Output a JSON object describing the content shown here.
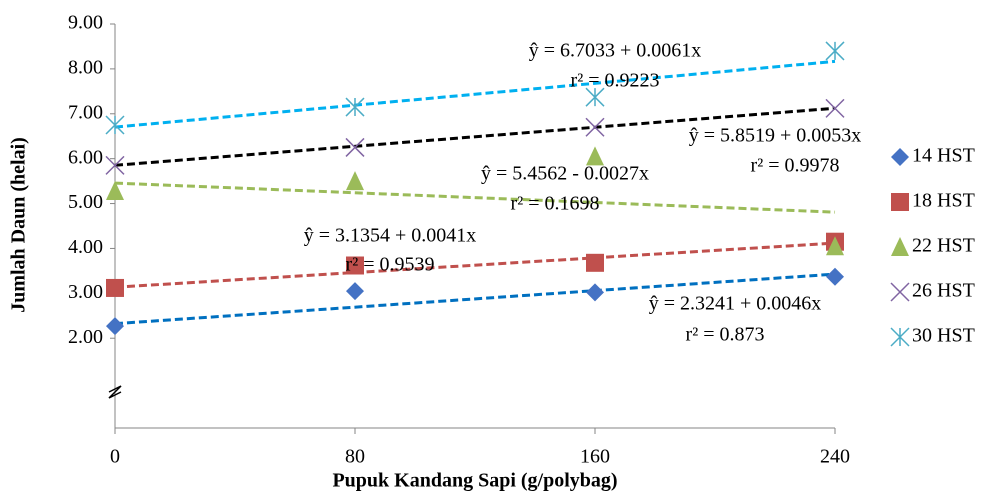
{
  "chart_data": {
    "type": "scatter",
    "x_label": "Pupuk Kandang Sapi (g/polybag)",
    "y_label": "Jumlah Daun (helai)",
    "xlim": [
      0,
      240
    ],
    "xticks": [
      0,
      80,
      160,
      240
    ],
    "ylim": [
      0,
      9
    ],
    "yticks": [
      {
        "value": 2,
        "label": "2.00"
      },
      {
        "value": 3,
        "label": "3.00"
      },
      {
        "value": 4,
        "label": "4.00"
      },
      {
        "value": 5,
        "label": "5.00"
      },
      {
        "value": 6,
        "label": "6.00"
      },
      {
        "value": 7,
        "label": "7.00"
      },
      {
        "value": 8,
        "label": "8.00"
      },
      {
        "value": 9,
        "label": "9.00"
      }
    ],
    "legend": "right",
    "x": [
      0,
      80,
      160,
      240
    ],
    "series": [
      {
        "name": "14 HST",
        "color": "#4472c4",
        "marker": "diamond",
        "values": [
          2.27,
          3.05,
          3.02,
          3.37
        ],
        "trendline": {
          "equation": "ŷ = 2.3241 + 0.0046x",
          "r2_label": "r² = 0.873",
          "intercept": 2.3241,
          "slope": 0.0046,
          "r2": 0.873,
          "color": "#0070c0"
        }
      },
      {
        "name": "18 HST",
        "color": "#c0504d",
        "marker": "square",
        "values": [
          3.12,
          3.62,
          3.68,
          4.15
        ],
        "trendline": {
          "equation": "ŷ = 3.1354 + 0.0041x",
          "r2_label": "r² = 0.9539",
          "intercept": 3.1354,
          "slope": 0.0041,
          "r2": 0.9539,
          "color": "#c0504d"
        }
      },
      {
        "name": "22 HST",
        "color": "#9bbb59",
        "marker": "triangle",
        "values": [
          5.28,
          5.5,
          6.05,
          4.05
        ],
        "trendline": {
          "equation": "ŷ = 5.4562 - 0.0027x",
          "r2_label": "r² = 0.1698",
          "intercept": 5.4562,
          "slope": -0.0027,
          "r2": 0.1698,
          "color": "#9bbb59"
        }
      },
      {
        "name": "26 HST",
        "color": "#8064a2",
        "marker": "x",
        "values": [
          5.85,
          6.25,
          6.7,
          7.12
        ],
        "trendline": {
          "equation": "ŷ = 5.8519 + 0.0053x",
          "r2_label": "r² = 0.9978",
          "intercept": 5.8519,
          "slope": 0.0053,
          "r2": 0.9978,
          "color": "#000000"
        }
      },
      {
        "name": "30 HST",
        "color": "#4bacc6",
        "marker": "asterisk",
        "values": [
          6.75,
          7.15,
          7.37,
          8.4
        ],
        "trendline": {
          "equation": "ŷ = 6.7033 + 0.0061x",
          "r2_label": "r² = 0.9223",
          "intercept": 6.7033,
          "slope": 0.0061,
          "r2": 0.9223,
          "color": "#00b0f0"
        }
      }
    ]
  }
}
